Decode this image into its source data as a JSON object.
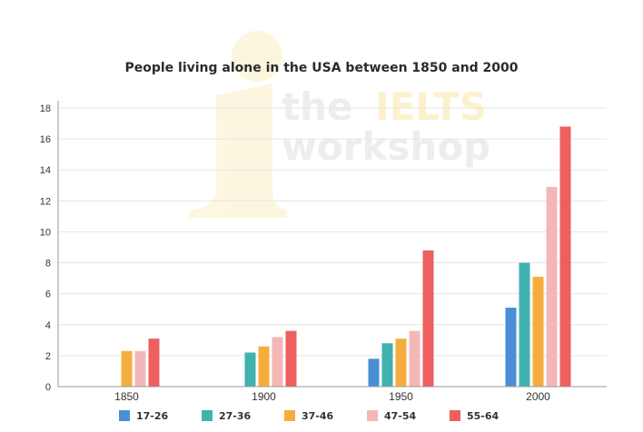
{
  "watermark": {
    "line1": "the",
    "line1_accent": "IELTS",
    "line2": "workshop"
  },
  "chart_data": {
    "type": "bar",
    "title": "People living alone in the USA between 1850 and 2000",
    "xlabel": "",
    "ylabel": "",
    "categories": [
      "1850",
      "1900",
      "1950",
      "2000"
    ],
    "ylim": [
      0,
      18
    ],
    "yticks": [
      0,
      2,
      4,
      6,
      8,
      10,
      12,
      14,
      16,
      18
    ],
    "grid": true,
    "legend_position": "bottom",
    "series": [
      {
        "name": "17-26",
        "color": "#4a8fd6",
        "values": [
          0,
          0,
          1.8,
          5.1
        ]
      },
      {
        "name": "27-36",
        "color": "#3fb2b0",
        "values": [
          0,
          2.2,
          2.8,
          8.0
        ]
      },
      {
        "name": "37-46",
        "color": "#f5ae3d",
        "values": [
          2.3,
          2.6,
          3.1,
          7.1
        ]
      },
      {
        "name": "47-54",
        "color": "#f3b7b7",
        "values": [
          2.3,
          3.2,
          3.6,
          12.9
        ]
      },
      {
        "name": "55-64",
        "color": "#ee5f5f",
        "values": [
          3.1,
          3.6,
          8.8,
          16.8
        ]
      }
    ]
  }
}
